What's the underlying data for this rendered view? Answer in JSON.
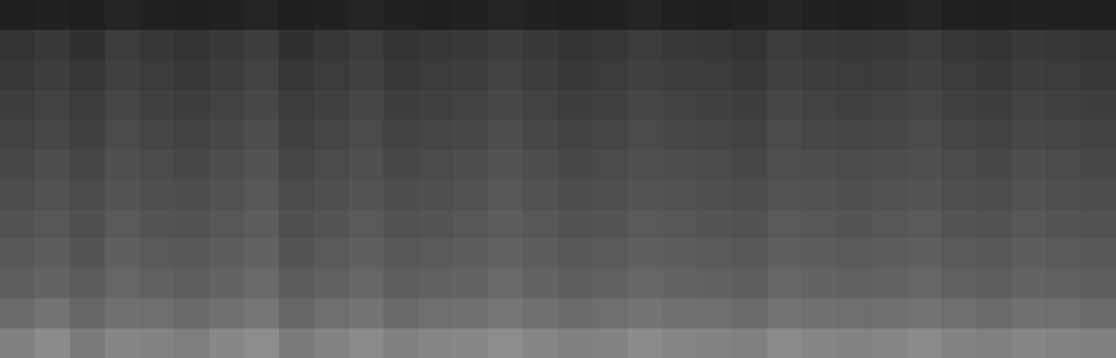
{
  "chart_data": {
    "type": "heatmap",
    "tick_labels": false,
    "xlim": [
      0,
      32
    ],
    "ylim": [
      0,
      12
    ],
    "zlim": [
      0,
      100
    ],
    "cells": [
      [
        12,
        13,
        12,
        14,
        13,
        12,
        13,
        14,
        12,
        13,
        14,
        13,
        12,
        13,
        14,
        13,
        12,
        13,
        14,
        13,
        12,
        13,
        14,
        13,
        12,
        13,
        14,
        13,
        12,
        13,
        13,
        12
      ],
      [
        20,
        22,
        19,
        23,
        21,
        20,
        22,
        24,
        19,
        21,
        23,
        20,
        21,
        22,
        24,
        22,
        20,
        21,
        23,
        22,
        21,
        20,
        23,
        22,
        21,
        22,
        23,
        21,
        20,
        22,
        21,
        20
      ],
      [
        22,
        24,
        21,
        25,
        23,
        22,
        24,
        26,
        21,
        23,
        25,
        22,
        23,
        24,
        26,
        24,
        22,
        23,
        25,
        24,
        23,
        22,
        25,
        24,
        23,
        24,
        25,
        23,
        22,
        24,
        23,
        22
      ],
      [
        24,
        26,
        23,
        27,
        25,
        24,
        26,
        28,
        23,
        25,
        27,
        24,
        25,
        26,
        28,
        26,
        24,
        25,
        27,
        26,
        25,
        24,
        27,
        26,
        25,
        26,
        27,
        25,
        24,
        26,
        25,
        24
      ],
      [
        26,
        28,
        25,
        29,
        27,
        26,
        28,
        30,
        25,
        27,
        29,
        26,
        27,
        28,
        30,
        28,
        26,
        27,
        29,
        28,
        27,
        26,
        29,
        28,
        27,
        28,
        29,
        27,
        26,
        28,
        27,
        26
      ],
      [
        28,
        30,
        27,
        31,
        29,
        28,
        30,
        32,
        27,
        29,
        31,
        28,
        29,
        30,
        32,
        30,
        28,
        29,
        31,
        30,
        29,
        28,
        31,
        30,
        29,
        30,
        31,
        29,
        28,
        30,
        29,
        28
      ],
      [
        30,
        32,
        29,
        33,
        31,
        30,
        32,
        34,
        29,
        31,
        33,
        30,
        31,
        32,
        34,
        32,
        30,
        31,
        33,
        32,
        31,
        30,
        33,
        32,
        31,
        32,
        33,
        31,
        30,
        32,
        31,
        30
      ],
      [
        32,
        34,
        31,
        35,
        33,
        32,
        34,
        36,
        31,
        33,
        35,
        32,
        33,
        34,
        36,
        34,
        32,
        33,
        35,
        34,
        33,
        32,
        35,
        34,
        33,
        34,
        35,
        33,
        32,
        34,
        33,
        32
      ],
      [
        34,
        36,
        33,
        37,
        35,
        34,
        36,
        38,
        33,
        35,
        37,
        34,
        35,
        36,
        38,
        36,
        34,
        35,
        37,
        36,
        35,
        34,
        37,
        36,
        35,
        36,
        37,
        35,
        34,
        36,
        35,
        34
      ],
      [
        37,
        39,
        36,
        40,
        38,
        37,
        39,
        41,
        36,
        38,
        40,
        37,
        38,
        39,
        41,
        39,
        37,
        38,
        40,
        39,
        38,
        37,
        40,
        39,
        38,
        39,
        40,
        38,
        37,
        39,
        38,
        37
      ],
      [
        42,
        45,
        40,
        44,
        43,
        41,
        44,
        46,
        40,
        43,
        45,
        41,
        43,
        44,
        46,
        44,
        42,
        43,
        45,
        44,
        43,
        42,
        45,
        44,
        43,
        44,
        45,
        43,
        42,
        44,
        43,
        42
      ],
      [
        50,
        54,
        48,
        52,
        51,
        49,
        53,
        55,
        48,
        51,
        54,
        50,
        52,
        53,
        55,
        52,
        50,
        51,
        54,
        52,
        51,
        50,
        54,
        52,
        51,
        52,
        54,
        51,
        50,
        52,
        51,
        50
      ]
    ]
  }
}
